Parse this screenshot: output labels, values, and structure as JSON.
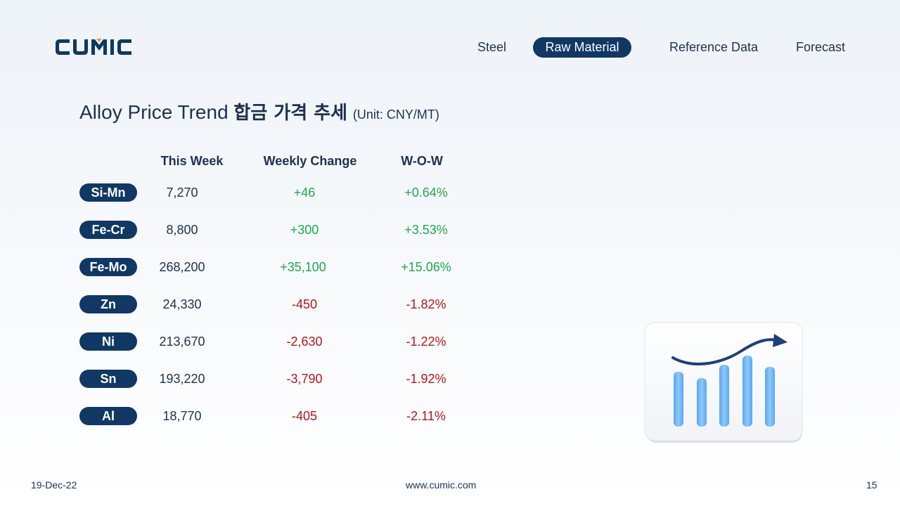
{
  "brand": {
    "logo_text": "CUMIC"
  },
  "nav": {
    "items": [
      {
        "label": "Steel"
      },
      {
        "label": "Raw Material"
      },
      {
        "label": "Reference Data"
      },
      {
        "label": "Forecast"
      }
    ],
    "active_index": 1
  },
  "title": {
    "main": "Alloy Price Trend",
    "korean": "합금 가격 추세",
    "unit": "(Unit: CNY/MT)"
  },
  "table": {
    "headers": [
      "This Week",
      "Weekly Change",
      "W-O-W"
    ],
    "rows": [
      {
        "name": "Si-Mn",
        "price": "7,270",
        "change": "+46",
        "wow": "+0.64%",
        "direction": "up"
      },
      {
        "name": "Fe-Cr",
        "price": "8,800",
        "change": "+300",
        "wow": "+3.53%",
        "direction": "up"
      },
      {
        "name": "Fe-Mo",
        "price": "268,200",
        "change": "+35,100",
        "wow": "+15.06%",
        "direction": "up"
      },
      {
        "name": "Zn",
        "price": "24,330",
        "change": "-450",
        "wow": "-1.82%",
        "direction": "down"
      },
      {
        "name": "Ni",
        "price": "213,670",
        "change": "-2,630",
        "wow": "-1.22%",
        "direction": "down"
      },
      {
        "name": "Sn",
        "price": "193,220",
        "change": "-3,790",
        "wow": "-1.92%",
        "direction": "down"
      },
      {
        "name": "Al",
        "price": "18,770",
        "change": "-405",
        "wow": "-2.11%",
        "direction": "down"
      }
    ]
  },
  "illustration": {
    "icon": "bar-chart-trend-up-icon"
  },
  "footer": {
    "date": "19-Dec-22",
    "website": "www.cumic.com",
    "page_number": "15"
  },
  "colors": {
    "navy": "#0f3864",
    "text": "#1d3150",
    "positive": "#1fa84f",
    "negative": "#b4161b",
    "bar_blue": "#6ab4f5"
  }
}
